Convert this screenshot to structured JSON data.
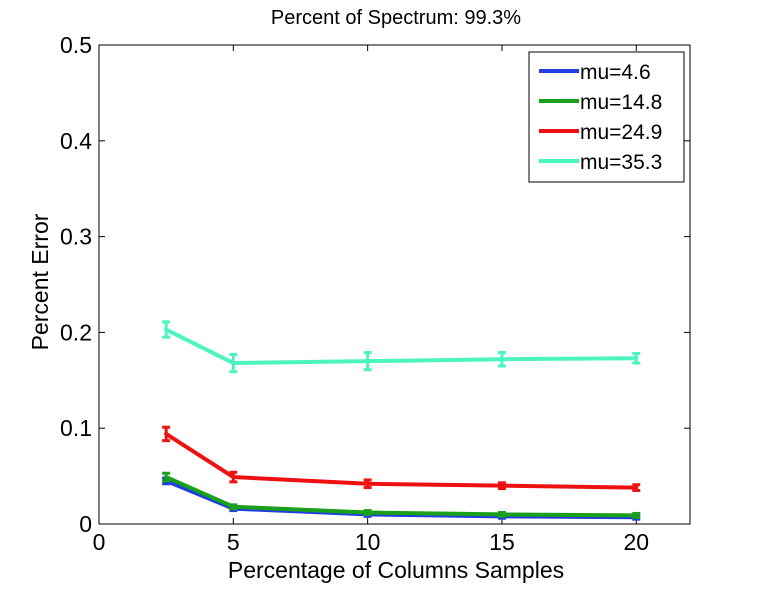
{
  "chart_data": {
    "type": "line",
    "title": "Percent of Spectrum: 99.3%",
    "xlabel": "Percentage of Columns Samples",
    "ylabel": "Percent Error",
    "xlim": [
      0,
      22
    ],
    "ylim": [
      0,
      0.5
    ],
    "xticks": [
      0,
      5,
      10,
      15,
      20
    ],
    "xtick_labels": [
      "0",
      "5",
      "10",
      "15",
      "20"
    ],
    "yticks": [
      0,
      0.1,
      0.2,
      0.3,
      0.4,
      0.5
    ],
    "ytick_labels": [
      "0",
      "0.1",
      "0.2",
      "0.3",
      "0.4",
      "0.5"
    ],
    "x": [
      2.5,
      5,
      10,
      15,
      20
    ],
    "legend_position": "top-right",
    "grid": false,
    "series": [
      {
        "name": "mu=4.6",
        "color": "#1f3fe0",
        "values": [
          0.045,
          0.016,
          0.01,
          0.008,
          0.007
        ],
        "errors": [
          0.003,
          0.002,
          0.002,
          0.002,
          0.002
        ]
      },
      {
        "name": "mu=14.8",
        "color": "#1aa01a",
        "values": [
          0.049,
          0.018,
          0.012,
          0.01,
          0.009
        ],
        "errors": [
          0.004,
          0.002,
          0.002,
          0.002,
          0.002
        ]
      },
      {
        "name": "mu=24.9",
        "color": "#ee1111",
        "values": [
          0.094,
          0.049,
          0.042,
          0.04,
          0.038
        ],
        "errors": [
          0.007,
          0.005,
          0.004,
          0.003,
          0.003
        ]
      },
      {
        "name": "mu=35.3",
        "color": "#4df5be",
        "values": [
          0.203,
          0.168,
          0.17,
          0.172,
          0.173
        ],
        "errors": [
          0.008,
          0.009,
          0.009,
          0.007,
          0.005
        ]
      }
    ]
  }
}
